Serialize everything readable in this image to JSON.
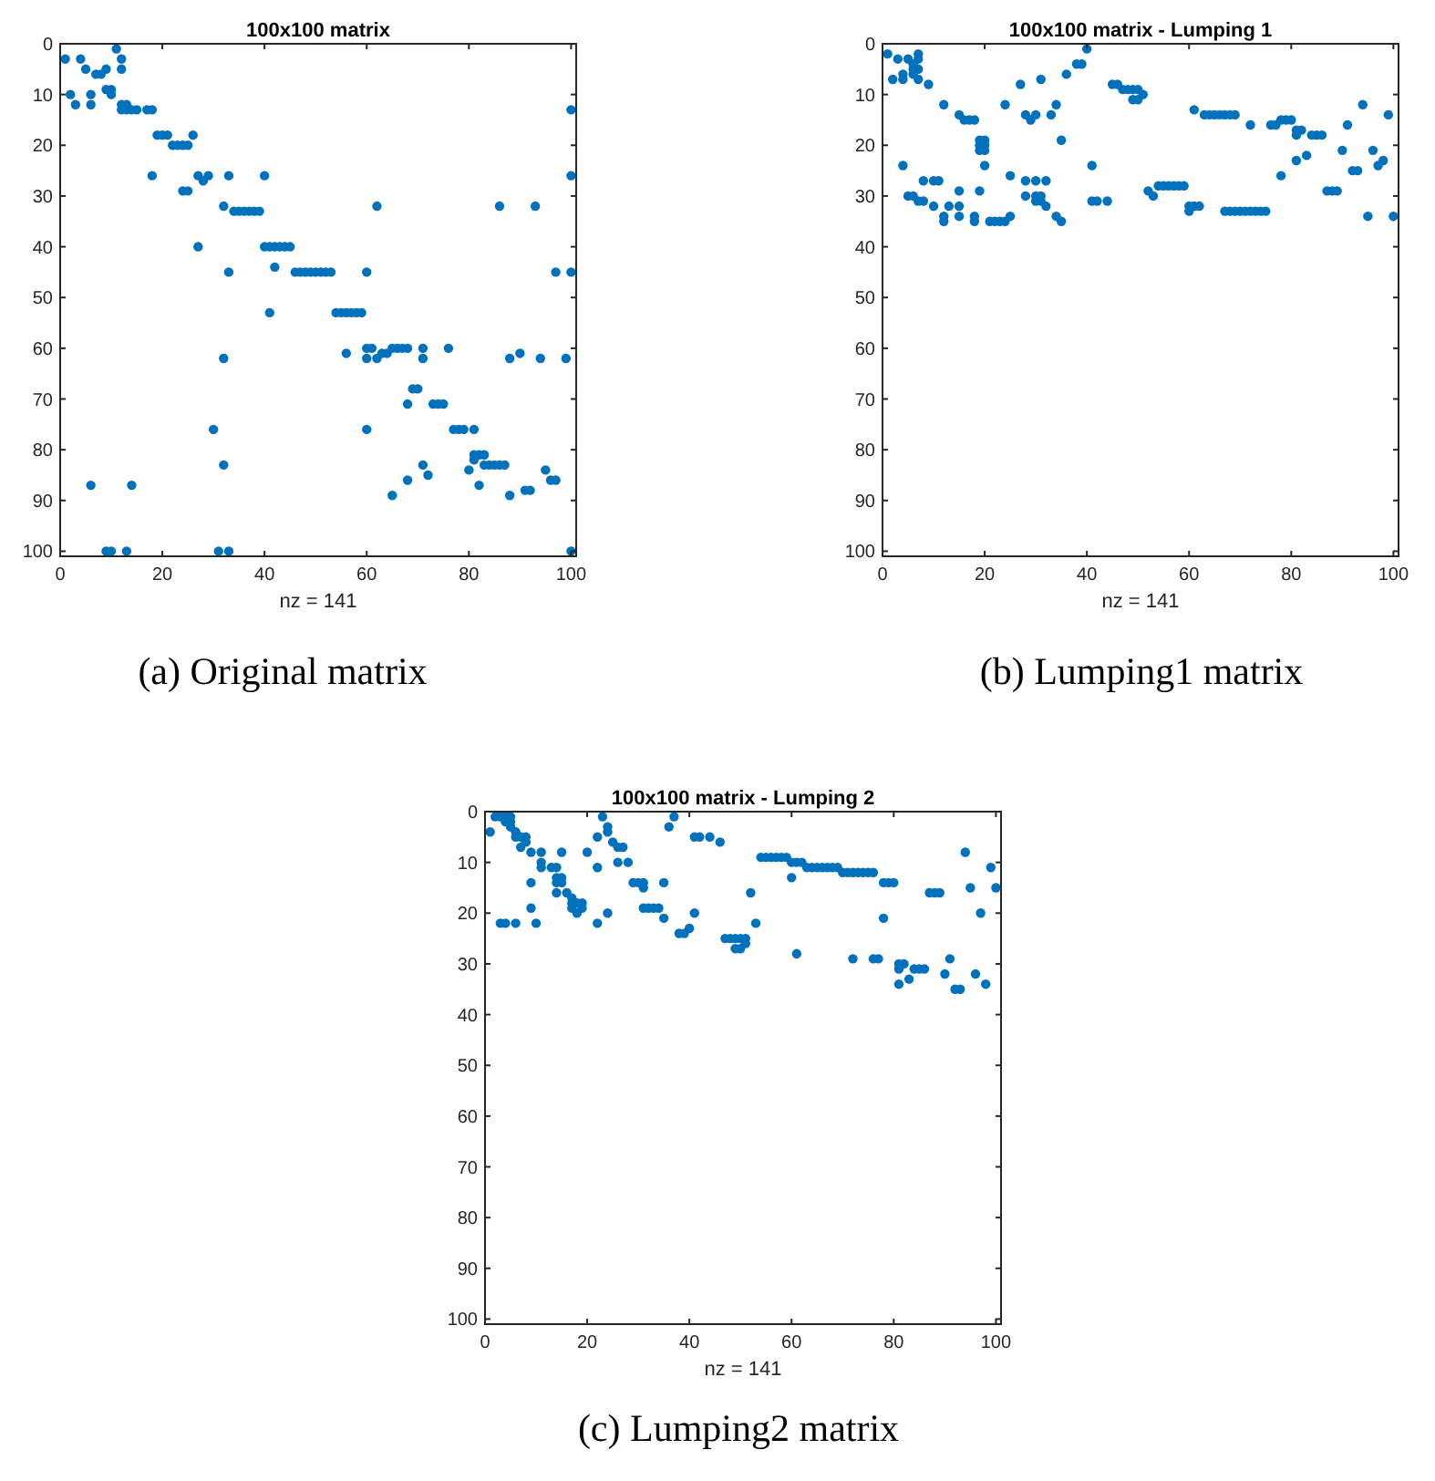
{
  "chart_data": [
    {
      "type": "scatter",
      "title": "100x100 matrix",
      "xlabel": "nz = 141",
      "annotations": [
        "(a) Original matrix"
      ],
      "color": "#0072bd",
      "marker": "circle",
      "xlim": [
        0,
        101
      ],
      "ylim": [
        101,
        0
      ],
      "xticks": [
        0,
        20,
        40,
        60,
        80,
        100
      ],
      "yticks": [
        0,
        10,
        20,
        30,
        40,
        50,
        60,
        70,
        80,
        90,
        100
      ],
      "x": [
        1,
        4,
        12,
        11,
        12,
        5,
        9,
        7,
        8,
        2,
        6,
        9,
        10,
        10,
        3,
        6,
        12,
        13,
        12,
        13,
        14,
        15,
        17,
        18,
        100,
        19,
        20,
        21,
        26,
        22,
        23,
        24,
        25,
        18,
        27,
        29,
        28,
        33,
        40,
        100,
        24,
        25,
        32,
        62,
        86,
        93,
        34,
        35,
        36,
        37,
        38,
        39,
        27,
        40,
        41,
        42,
        43,
        44,
        45,
        42,
        33,
        46,
        47,
        48,
        49,
        50,
        51,
        52,
        53,
        60,
        97,
        100,
        41,
        54,
        55,
        56,
        57,
        58,
        59,
        60,
        61,
        65,
        66,
        67,
        68,
        71,
        76,
        32,
        60,
        62,
        71,
        88,
        94,
        99,
        56,
        63,
        64,
        90,
        69,
        70,
        68,
        73,
        74,
        75,
        30,
        60,
        77,
        78,
        79,
        81,
        81,
        82,
        83,
        81,
        32,
        71,
        83,
        84,
        85,
        86,
        87,
        80,
        95,
        72,
        68,
        96,
        97,
        6,
        14,
        82,
        91,
        92,
        65,
        88,
        9,
        10,
        13,
        31,
        33,
        100
      ],
      "values": [
        3,
        3,
        3,
        1,
        5,
        5,
        5,
        6,
        6,
        10,
        10,
        9,
        9,
        10,
        12,
        12,
        12,
        12,
        13,
        13,
        13,
        13,
        13,
        13,
        13,
        18,
        18,
        18,
        18,
        20,
        20,
        20,
        20,
        26,
        26,
        26,
        27,
        26,
        26,
        26,
        29,
        29,
        32,
        32,
        32,
        32,
        33,
        33,
        33,
        33,
        33,
        33,
        40,
        40,
        40,
        40,
        40,
        40,
        40,
        44,
        45,
        45,
        45,
        45,
        45,
        45,
        45,
        45,
        45,
        45,
        45,
        45,
        53,
        53,
        53,
        53,
        53,
        53,
        53,
        60,
        60,
        60,
        60,
        60,
        60,
        60,
        60,
        62,
        62,
        62,
        62,
        62,
        62,
        62,
        61,
        61,
        61,
        61,
        68,
        68,
        71,
        71,
        71,
        71,
        76,
        76,
        76,
        76,
        76,
        76,
        81,
        81,
        81,
        82,
        83,
        83,
        83,
        83,
        83,
        83,
        83,
        84,
        84,
        85,
        86,
        86,
        86,
        87,
        87,
        87,
        88,
        88,
        89,
        89,
        100,
        100,
        100,
        100,
        100,
        100
      ]
    },
    {
      "type": "scatter",
      "title": "100x100 matrix - Lumping 1",
      "xlabel": "nz = 141",
      "annotations": [
        "(b) Lumping1 matrix"
      ],
      "color": "#0072bd",
      "marker": "circle",
      "xlim": [
        0,
        101
      ],
      "ylim": [
        101,
        0
      ],
      "xticks": [
        0,
        20,
        40,
        60,
        80,
        100
      ],
      "yticks": [
        0,
        10,
        20,
        30,
        40,
        50,
        60,
        70,
        80,
        90,
        100
      ],
      "x": [
        1,
        7,
        40,
        3,
        5,
        7,
        6,
        6,
        7,
        38,
        39,
        4,
        6,
        36,
        2,
        4,
        7,
        31,
        9,
        27,
        45,
        46,
        47,
        48,
        49,
        50,
        51,
        49,
        50,
        12,
        24,
        34,
        94,
        61,
        15,
        28,
        30,
        33,
        63,
        64,
        65,
        66,
        67,
        68,
        69,
        99,
        16,
        17,
        18,
        29,
        78,
        79,
        80,
        72,
        76,
        77,
        91,
        81,
        82,
        81,
        84,
        85,
        86,
        19,
        20,
        19,
        20,
        19,
        20,
        35,
        90,
        96,
        83,
        81,
        98,
        4,
        20,
        41,
        97,
        92,
        93,
        25,
        78,
        8,
        10,
        11,
        28,
        30,
        32,
        54,
        55,
        56,
        57,
        58,
        59,
        15,
        19,
        52,
        87,
        88,
        89,
        5,
        6,
        28,
        30,
        31,
        53,
        7,
        8,
        30,
        31,
        41,
        42,
        44,
        10,
        13,
        15,
        32,
        60,
        61,
        62,
        60,
        67,
        68,
        69,
        70,
        71,
        72,
        73,
        74,
        75,
        12,
        15,
        18,
        25,
        34,
        95,
        100,
        12,
        18,
        21,
        22,
        23,
        24,
        35
      ],
      "values": [
        2,
        2,
        1,
        3,
        3,
        3,
        4,
        5,
        5,
        4,
        4,
        6,
        6,
        6,
        7,
        7,
        7,
        7,
        8,
        8,
        8,
        8,
        9,
        9,
        9,
        9,
        10,
        11,
        11,
        12,
        12,
        12,
        12,
        13,
        14,
        14,
        14,
        14,
        14,
        14,
        14,
        14,
        14,
        14,
        14,
        14,
        15,
        15,
        15,
        15,
        15,
        15,
        15,
        16,
        16,
        16,
        16,
        17,
        17,
        18,
        18,
        18,
        18,
        19,
        19,
        20,
        20,
        21,
        21,
        19,
        21,
        21,
        22,
        23,
        23,
        24,
        24,
        24,
        24,
        25,
        25,
        26,
        26,
        27,
        27,
        27,
        27,
        27,
        27,
        28,
        28,
        28,
        28,
        28,
        28,
        29,
        29,
        29,
        29,
        29,
        29,
        30,
        30,
        30,
        30,
        30,
        30,
        31,
        31,
        31,
        31,
        31,
        31,
        31,
        32,
        32,
        32,
        32,
        32,
        32,
        32,
        33,
        33,
        33,
        33,
        33,
        33,
        33,
        33,
        33,
        33,
        34,
        34,
        34,
        34,
        34,
        34,
        34,
        35,
        35,
        35,
        35,
        35,
        35,
        35
      ]
    },
    {
      "type": "scatter",
      "title": "100x100 matrix - Lumping 2",
      "xlabel": "nz = 141",
      "annotations": [
        "(c) Lumping2 matrix"
      ],
      "color": "#0072bd",
      "marker": "circle",
      "xlim": [
        0,
        101
      ],
      "ylim": [
        101,
        0
      ],
      "xticks": [
        0,
        20,
        40,
        60,
        80,
        100
      ],
      "yticks": [
        0,
        10,
        20,
        30,
        40,
        50,
        60,
        70,
        80,
        90,
        100
      ],
      "x": [
        1,
        2,
        3,
        4,
        5,
        23,
        37,
        4,
        5,
        5,
        24,
        36,
        24,
        6,
        6,
        7,
        8,
        22,
        41,
        42,
        44,
        8,
        25,
        46,
        7,
        26,
        27,
        9,
        11,
        15,
        20,
        94,
        54,
        55,
        56,
        57,
        58,
        59,
        60,
        61,
        62,
        11,
        26,
        28,
        22,
        11,
        13,
        14,
        63,
        64,
        65,
        66,
        67,
        68,
        69,
        99,
        14,
        15,
        60,
        70,
        71,
        72,
        73,
        74,
        75,
        76,
        29,
        30,
        31,
        78,
        79,
        80,
        9,
        14,
        15,
        31,
        35,
        95,
        100,
        14,
        16,
        52,
        87,
        88,
        89,
        17,
        17,
        18,
        19,
        9,
        17,
        19,
        31,
        32,
        33,
        34,
        18,
        24,
        41,
        97,
        35,
        78,
        3,
        4,
        6,
        10,
        22,
        53,
        40,
        38,
        39,
        47,
        48,
        49,
        50,
        51,
        51,
        49,
        50,
        61,
        72,
        76,
        77,
        91,
        81,
        82,
        81,
        84,
        85,
        86,
        90,
        96,
        83,
        81,
        98,
        92,
        93
      ],
      "values": [
        4,
        1,
        1,
        1,
        1,
        1,
        1,
        2,
        2,
        3,
        3,
        3,
        4,
        4,
        5,
        5,
        5,
        5,
        5,
        5,
        5,
        6,
        6,
        6,
        7,
        7,
        7,
        8,
        8,
        8,
        8,
        8,
        9,
        9,
        9,
        9,
        9,
        9,
        10,
        10,
        10,
        10,
        10,
        10,
        11,
        11,
        11,
        11,
        11,
        11,
        11,
        11,
        11,
        11,
        11,
        11,
        13,
        13,
        13,
        12,
        12,
        12,
        12,
        12,
        12,
        12,
        14,
        14,
        14,
        14,
        14,
        14,
        14,
        14,
        14,
        15,
        14,
        15,
        15,
        16,
        16,
        16,
        16,
        16,
        16,
        17,
        18,
        18,
        18,
        19,
        19,
        19,
        19,
        19,
        19,
        19,
        20,
        20,
        20,
        20,
        21,
        21,
        22,
        22,
        22,
        22,
        22,
        22,
        23,
        24,
        24,
        25,
        25,
        25,
        25,
        25,
        26,
        27,
        27,
        28,
        29,
        29,
        29,
        29,
        30,
        30,
        31,
        31,
        31,
        31,
        32,
        32,
        33,
        34,
        34,
        35,
        35
      ]
    }
  ]
}
